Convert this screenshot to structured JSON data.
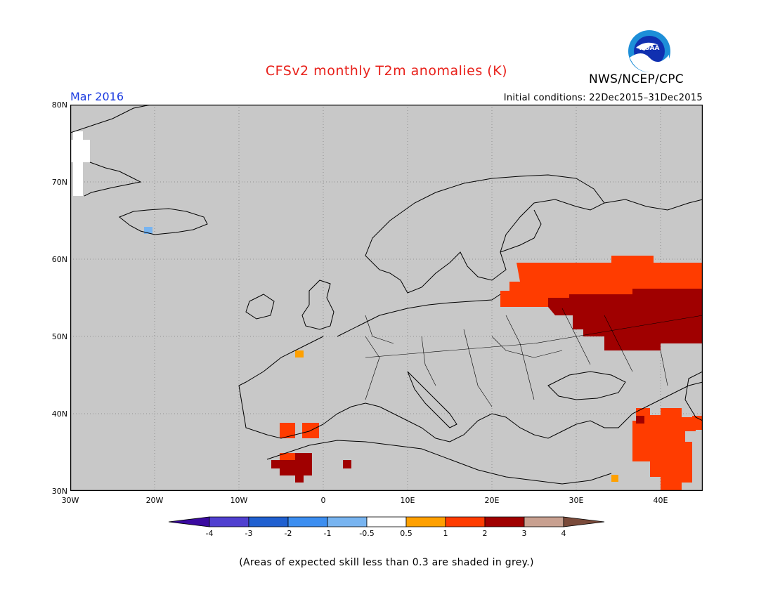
{
  "title": "CFSv2 monthly T2m anomalies (K)",
  "agency": "NWS/NCEP/CPC",
  "logo_text": "NOAA",
  "month_label": "Mar 2016",
  "initial_conditions": "Initial conditions: 22Dec2015–31Dec2015",
  "footnote": "(Areas of expected skill less than 0.3 are shaded in grey.)",
  "map": {
    "background_color": "#c8c8c8",
    "lat_labels": [
      "80N",
      "70N",
      "60N",
      "50N",
      "40N",
      "30N"
    ],
    "lon_labels": [
      "30W",
      "20W",
      "10W",
      "0",
      "10E",
      "20E",
      "30E",
      "40E"
    ]
  },
  "colorbar": {
    "labels": [
      "-4",
      "-3",
      "-2",
      "-1",
      "-0.5",
      "0.5",
      "1",
      "2",
      "3",
      "4"
    ],
    "colors": [
      "#3a0aa0",
      "#5040d0",
      "#2060d0",
      "#3c8ef0",
      "#78b4f0",
      "#ffffff",
      "#ffa000",
      "#ff3c00",
      "#a00000",
      "#c8a090",
      "#7a4a3a"
    ]
  }
}
